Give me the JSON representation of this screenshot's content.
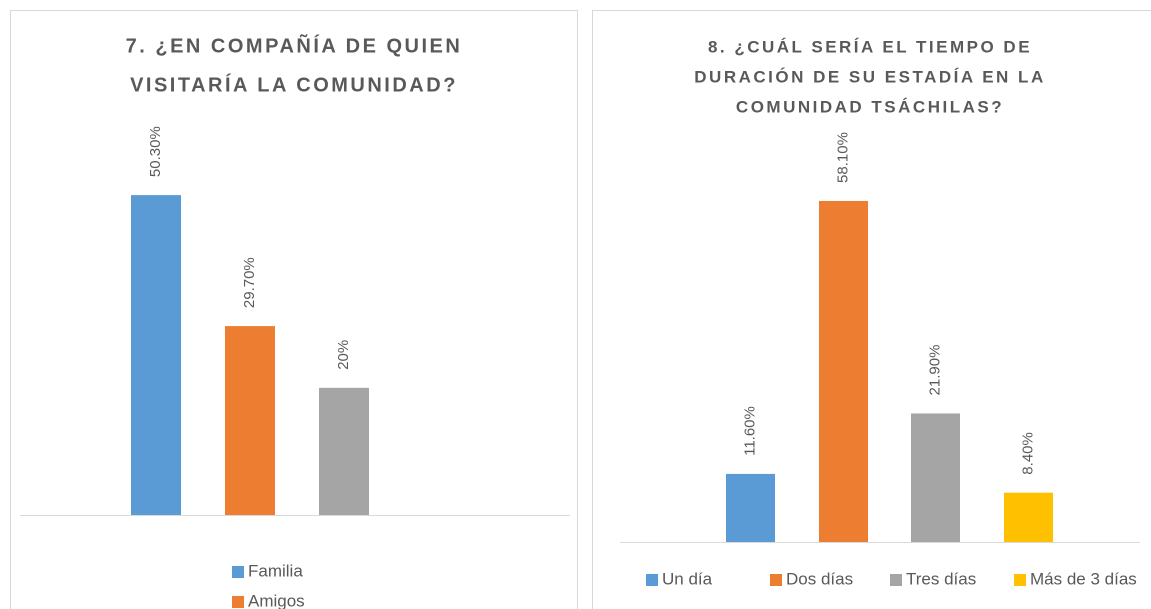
{
  "chart_data": [
    {
      "type": "bar",
      "title": [
        "7. ¿EN COMPAÑÍA DE QUIEN",
        "VISITARÍA LA COMUNIDAD?"
      ],
      "categories": [
        "Familia",
        "Amigos",
        null
      ],
      "values": [
        50.3,
        29.7,
        20
      ],
      "value_labels": [
        "50.30%",
        "29.70%",
        "20%"
      ],
      "colors": [
        "#5b9bd5",
        "#ed7d31",
        "#a5a5a5"
      ],
      "legend": "bottom-vertical"
    },
    {
      "type": "bar",
      "title": [
        "8. ¿CUÁL SERÍA EL TIEMPO DE",
        "DURACIÓN DE SU ESTADÍA EN LA",
        "COMUNIDAD TSÁCHILAS?"
      ],
      "categories": [
        "Un día",
        "Dos días",
        "Tres días",
        "Más de 3 días"
      ],
      "values": [
        11.6,
        58.1,
        21.9,
        8.4
      ],
      "value_labels": [
        "11.60%",
        "58.10%",
        "21.90%",
        "8.40%"
      ],
      "colors": [
        "#5b9bd5",
        "#ed7d31",
        "#a5a5a5",
        "#ffc000"
      ],
      "legend": "bottom-horizontal"
    }
  ]
}
